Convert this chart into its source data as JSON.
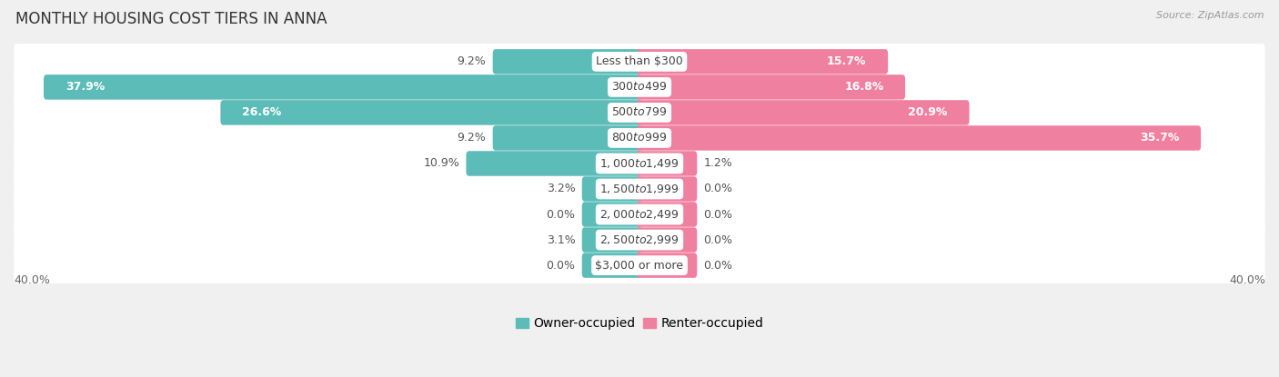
{
  "title": "MONTHLY HOUSING COST TIERS IN ANNA",
  "source": "Source: ZipAtlas.com",
  "categories": [
    "Less than $300",
    "$300 to $499",
    "$500 to $799",
    "$800 to $999",
    "$1,000 to $1,499",
    "$1,500 to $1,999",
    "$2,000 to $2,499",
    "$2,500 to $2,999",
    "$3,000 or more"
  ],
  "owner_values": [
    9.2,
    37.9,
    26.6,
    9.2,
    10.9,
    3.2,
    0.0,
    3.1,
    0.0
  ],
  "renter_values": [
    15.7,
    16.8,
    20.9,
    35.7,
    1.2,
    0.0,
    0.0,
    0.0,
    0.0
  ],
  "owner_color": "#5bbcb8",
  "renter_color": "#f080a0",
  "x_max": 40.0,
  "bar_height": 0.62,
  "min_bar_width": 3.5,
  "background_color": "#f0f0f0",
  "row_bg_color": "#ffffff",
  "title_fontsize": 12,
  "label_fontsize": 9,
  "category_fontsize": 9,
  "legend_fontsize": 10,
  "axis_label": "40.0%"
}
